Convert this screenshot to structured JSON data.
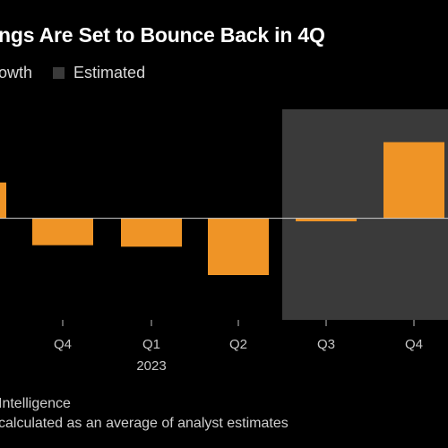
{
  "header": {
    "title": "ngs Are Set to Bounce Back in 4Q"
  },
  "legend": {
    "growth_label": "owth",
    "estimated_label": "Estimated"
  },
  "colors": {
    "bar": "#ef9426",
    "estimated_bg": "#3a3a3a",
    "background": "#000000",
    "zero_line": "#d0d0d0"
  },
  "chart_data": {
    "type": "bar",
    "categories": [
      "",
      "Q4",
      "Q1",
      "Q2",
      "Q3",
      "Q4"
    ],
    "year_labels": [
      "",
      "",
      "2023",
      "",
      "",
      ""
    ],
    "values": [
      2.4,
      -1.8,
      -1.9,
      -3.8,
      -0.2,
      5.1
    ],
    "estimated_from_index": 4,
    "ylim": [
      -6.8,
      7.3
    ],
    "grid": false
  },
  "footer": {
    "source": "Intelligence",
    "note": "calculated as an average of analyst estimates"
  }
}
